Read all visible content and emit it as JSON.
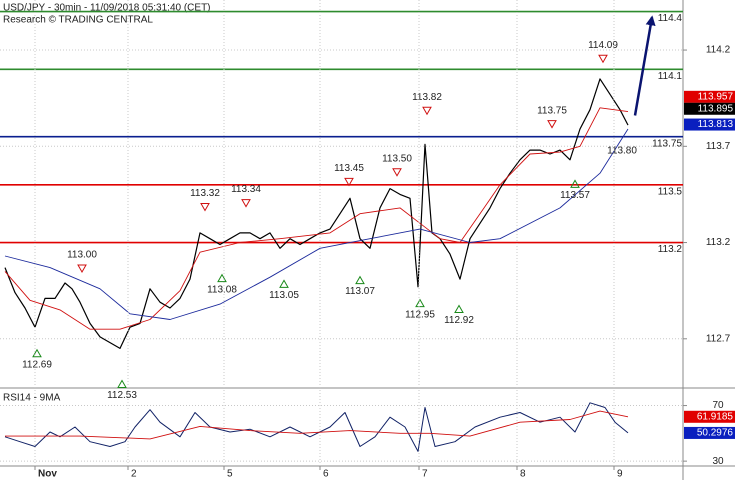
{
  "chart_data": [
    {
      "type": "line",
      "title": "USD/JPY - 30min - 11/09/2018 05:31:40 (CET)",
      "subtitle": "Research © TRADING CENTRAL",
      "xlim": [
        0,
        68.3
      ],
      "ylim": [
        112.46,
        114.46
      ],
      "yticks": [
        112.7,
        113.2,
        113.7,
        114.2
      ],
      "grid": true,
      "series": [
        {
          "color": "#000000",
          "width": 1.2,
          "x": [
            0.5,
            1.5,
            2.5,
            3.5,
            4.5,
            5.5,
            6.5,
            7.2,
            8,
            9,
            10,
            11,
            12,
            13,
            14,
            15,
            16,
            17,
            18,
            19,
            20,
            21,
            22,
            23,
            24,
            25,
            26,
            27,
            28,
            29,
            30,
            31,
            32,
            33,
            34,
            35,
            36,
            37,
            38,
            39,
            40,
            41,
            41.8,
            42.5,
            43.2,
            44,
            45,
            46,
            47,
            48,
            49,
            50,
            51,
            52,
            53,
            54,
            55,
            56,
            57,
            58,
            59,
            60,
            61,
            62,
            62.8
          ],
          "values": [
            113.07,
            112.94,
            112.86,
            112.76,
            112.91,
            112.91,
            112.99,
            112.96,
            112.89,
            112.78,
            112.71,
            112.68,
            112.65,
            112.76,
            112.78,
            112.96,
            112.89,
            112.86,
            112.91,
            113.01,
            113.25,
            113.22,
            113.19,
            113.22,
            113.25,
            113.25,
            113.22,
            113.25,
            113.17,
            113.22,
            113.19,
            113.22,
            113.25,
            113.27,
            113.35,
            113.43,
            113.22,
            113.17,
            113.38,
            113.48,
            113.45,
            113.43,
            112.97,
            113.71,
            113.25,
            113.22,
            113.14,
            113.01,
            113.22,
            113.3,
            113.38,
            113.48,
            113.56,
            113.63,
            113.68,
            113.68,
            113.66,
            113.68,
            113.63,
            113.79,
            113.89,
            114.05,
            113.97,
            113.89,
            113.81
          ]
        },
        {
          "color": "#d01010",
          "width": 0.9,
          "x": [
            0.5,
            3,
            6,
            9,
            12,
            15,
            18,
            20,
            24,
            28,
            33,
            36,
            40,
            42,
            44,
            46,
            48,
            50,
            53,
            56,
            58,
            60,
            62.8
          ],
          "values": [
            113.05,
            112.9,
            112.85,
            112.75,
            112.75,
            112.8,
            112.95,
            113.15,
            113.2,
            113.22,
            113.25,
            113.35,
            113.38,
            113.3,
            113.22,
            113.2,
            113.35,
            113.5,
            113.66,
            113.67,
            113.7,
            113.9,
            113.88
          ]
        },
        {
          "color": "#1c2a9c",
          "width": 0.9,
          "x": [
            0.5,
            5,
            10,
            13,
            17,
            22,
            27,
            32,
            37,
            42,
            47,
            50,
            56,
            60,
            62.8
          ],
          "values": [
            113.13,
            113.07,
            112.96,
            112.83,
            112.8,
            112.88,
            113.02,
            113.17,
            113.22,
            113.27,
            113.2,
            113.22,
            113.38,
            113.56,
            113.79
          ]
        }
      ],
      "levels": [
        {
          "value": 114.4,
          "color": "#2e8b2e"
        },
        {
          "value": 114.1,
          "color": "#2e8b2e"
        },
        {
          "value": 113.75,
          "color": "#0a1f8f"
        },
        {
          "value": 113.5,
          "color": "#e00000"
        },
        {
          "value": 113.2,
          "color": "#e00000"
        }
      ],
      "price_boxes": [
        {
          "value": 113.957,
          "color": "#e00000"
        },
        {
          "value": 113.895,
          "color": "#000000"
        },
        {
          "value": 113.813,
          "color": "#0a1fbf"
        }
      ],
      "forecast": {
        "x": [
          63.5,
          65.2
        ],
        "values": [
          113.86,
          114.37
        ],
        "color": "#0a1470"
      },
      "annotations": [
        {
          "x": 8.2,
          "value": 113.0,
          "label": "113.00",
          "kind": "high"
        },
        {
          "x": 3.7,
          "value": 112.69,
          "kind": "low"
        },
        {
          "x": 12.2,
          "value": 112.53,
          "kind": "low"
        },
        {
          "x": 20.5,
          "value": 113.32,
          "kind": "high"
        },
        {
          "x": 22.2,
          "value": 113.08,
          "kind": "low"
        },
        {
          "x": 24.6,
          "value": 113.34,
          "kind": "high"
        },
        {
          "x": 28.4,
          "value": 113.05,
          "kind": "low"
        },
        {
          "x": 34.9,
          "value": 113.45,
          "kind": "high"
        },
        {
          "x": 36.0,
          "value": 113.07,
          "kind": "low"
        },
        {
          "x": 39.7,
          "value": 113.5,
          "label": "113.50",
          "kind": "high"
        },
        {
          "x": 42.0,
          "value": 112.95,
          "kind": "low"
        },
        {
          "x": 42.7,
          "value": 113.82,
          "kind": "high"
        },
        {
          "x": 45.9,
          "value": 112.92,
          "kind": "low"
        },
        {
          "x": 55.2,
          "value": 113.75,
          "kind": "high"
        },
        {
          "x": 57.5,
          "value": 113.57,
          "kind": "low"
        },
        {
          "x": 60.3,
          "value": 114.09,
          "kind": "high"
        },
        {
          "x": 62.2,
          "value": 113.8,
          "label": "113.80",
          "kind": "note"
        }
      ]
    },
    {
      "type": "line",
      "title": "RSI14 - 9MA",
      "xlim": [
        0,
        68.3
      ],
      "ylim": [
        26.5,
        81.2
      ],
      "yticks": [
        30,
        70
      ],
      "grid": true,
      "xticks": [
        {
          "value": 3.5,
          "label": "Nov"
        },
        {
          "value": 12.8,
          "label": "2"
        },
        {
          "value": 22.4,
          "label": "5"
        },
        {
          "value": 32,
          "label": "6"
        },
        {
          "value": 41.9,
          "label": "7"
        },
        {
          "value": 51.7,
          "label": "8"
        },
        {
          "value": 61.4,
          "label": "9"
        }
      ],
      "series": [
        {
          "color": "#112266",
          "width": 1,
          "x": [
            0.5,
            2,
            3.5,
            5,
            6,
            7.5,
            9,
            11,
            12.5,
            13.5,
            15,
            16,
            18,
            19.5,
            21,
            23,
            25,
            27,
            29,
            31,
            33,
            34.5,
            36,
            37.5,
            39,
            40.5,
            41.8,
            42.5,
            43.5,
            45.5,
            47.5,
            50,
            52,
            54,
            56,
            57.5,
            59,
            60.5,
            61.5,
            62.8
          ],
          "values": [
            47.5,
            44,
            40.5,
            51,
            47.5,
            54.6,
            44,
            40.5,
            44,
            54.6,
            67,
            58,
            47.5,
            65,
            54.6,
            51,
            53,
            47.5,
            54.6,
            47.5,
            54.6,
            65,
            40.5,
            47.5,
            61.6,
            54.6,
            37,
            68.6,
            40.5,
            44,
            54.6,
            61.6,
            65,
            58,
            61.6,
            51,
            72,
            68.6,
            58,
            50.3
          ]
        },
        {
          "color": "#d01010",
          "width": 0.9,
          "x": [
            0.5,
            8,
            15,
            20,
            25,
            30,
            35,
            40,
            43,
            47,
            52,
            57,
            60,
            62.8
          ],
          "values": [
            48,
            48,
            46,
            55,
            52,
            50,
            52,
            50,
            50,
            48,
            58,
            60,
            66,
            61.9
          ]
        }
      ],
      "price_boxes": [
        {
          "value": 61.9185,
          "color": "#e00000"
        },
        {
          "value": 50.2976,
          "color": "#0a1fbf"
        }
      ]
    }
  ]
}
